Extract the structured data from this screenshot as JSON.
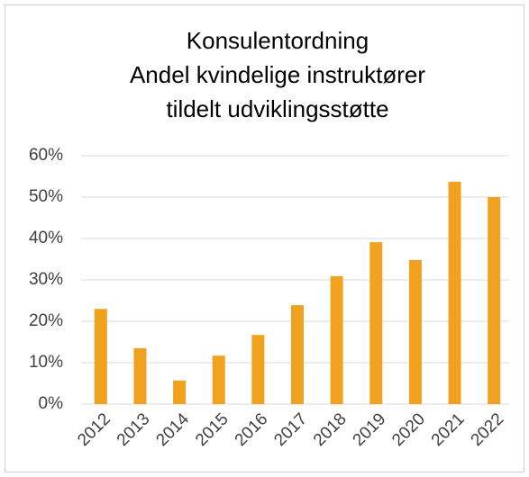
{
  "chart_data": {
    "type": "bar",
    "title": [
      "Konsulentordning",
      "Andel kvindelige instruktører",
      "tildelt udviklingsstøtte"
    ],
    "categories": [
      "2012",
      "2013",
      "2014",
      "2015",
      "2016",
      "2017",
      "2018",
      "2019",
      "2020",
      "2021",
      "2022"
    ],
    "values": [
      23.0,
      13.5,
      5.7,
      11.7,
      16.7,
      23.9,
      30.9,
      39.1,
      34.8,
      53.7,
      50.0
    ],
    "color": "#f0a21f",
    "ylim": [
      0,
      60
    ],
    "yticks": [
      {
        "value": 0,
        "label": "0%"
      },
      {
        "value": 10,
        "label": "10%"
      },
      {
        "value": 20,
        "label": "20%"
      },
      {
        "value": 30,
        "label": "30%"
      },
      {
        "value": 40,
        "label": "40%"
      },
      {
        "value": 50,
        "label": "50%"
      },
      {
        "value": 60,
        "label": "60%"
      }
    ],
    "grid": true
  }
}
